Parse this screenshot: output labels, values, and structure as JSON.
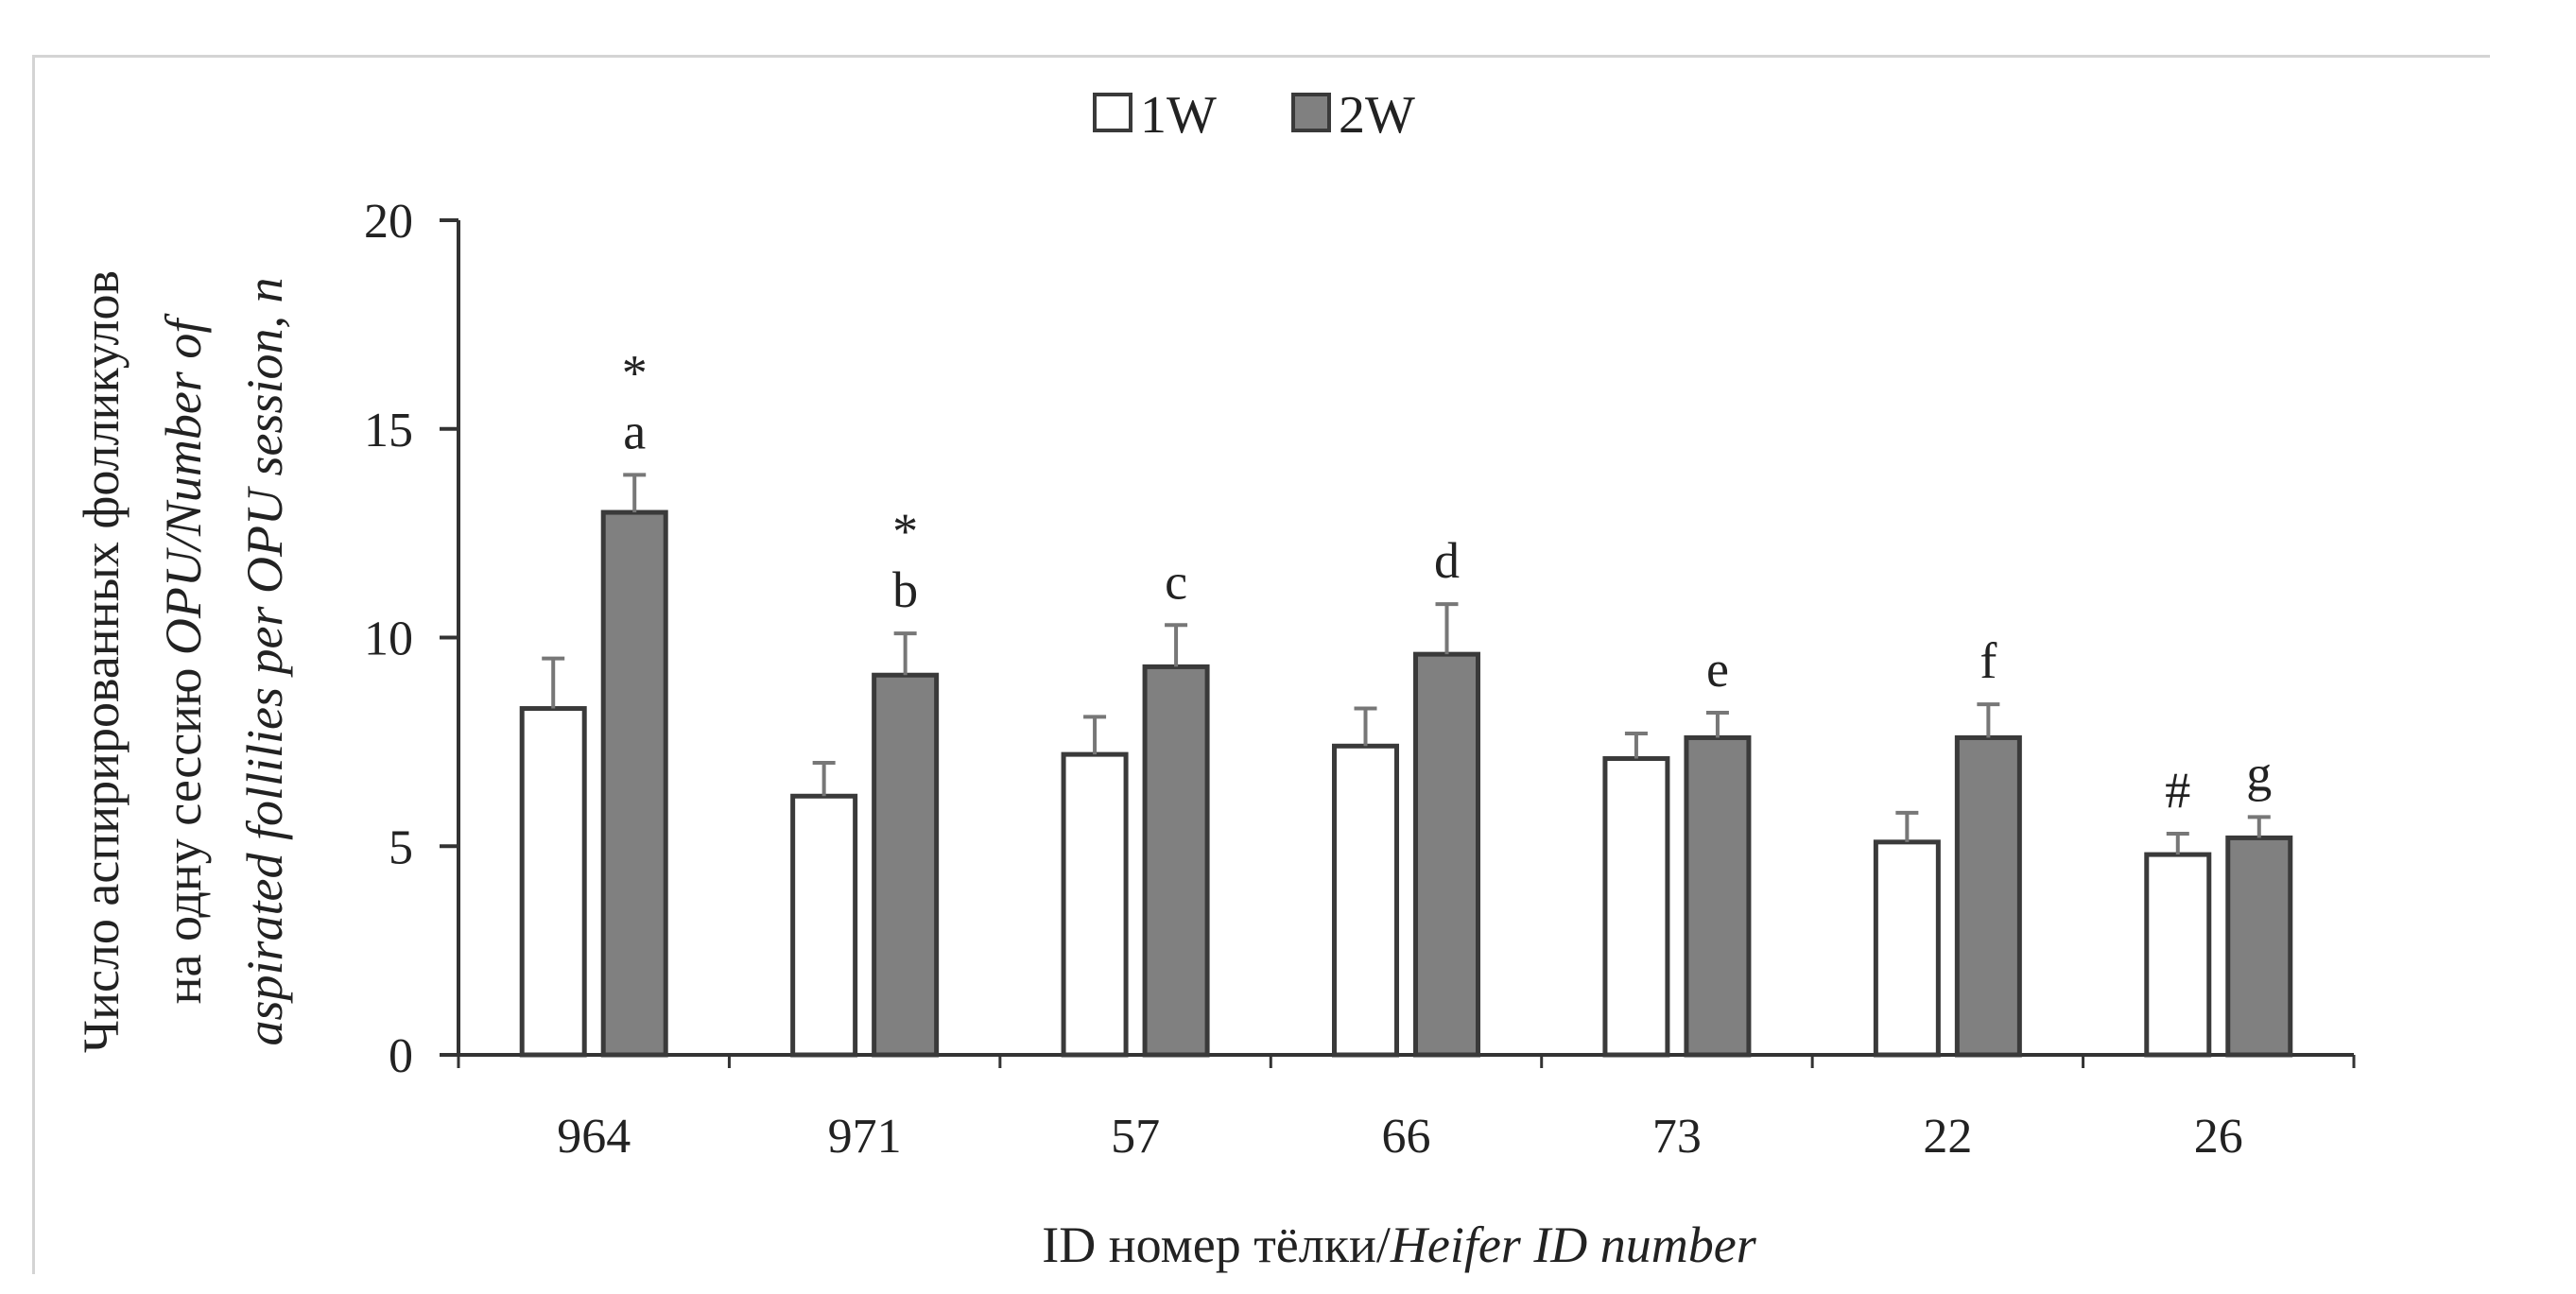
{
  "chart_data": {
    "type": "bar",
    "title": "",
    "xlabel_parts": [
      "ID номер тёлки/",
      "Heifer ID number"
    ],
    "ylabel_lines": [
      "Число аспирированных фолликулов",
      [
        "на одну сессию ",
        "OPU/Number of"
      ],
      "aspirated follilies per OPU session, n"
    ],
    "categories": [
      "964",
      "971",
      "57",
      "66",
      "73",
      "22",
      "26"
    ],
    "ylim": [
      0,
      20
    ],
    "yticks": [
      0,
      5,
      10,
      15,
      20
    ],
    "legend_position": "top-center",
    "series": [
      {
        "name": "1W",
        "color": "#ffffff",
        "values": [
          8.3,
          6.2,
          7.2,
          7.4,
          7.1,
          5.1,
          4.8
        ],
        "errors": [
          1.2,
          0.8,
          0.9,
          0.9,
          0.6,
          0.7,
          0.5
        ],
        "annotations": [
          "",
          "",
          "",
          "",
          "",
          "",
          "#"
        ]
      },
      {
        "name": "2W",
        "color": "#808080",
        "values": [
          13.0,
          9.1,
          9.3,
          9.6,
          7.6,
          7.6,
          5.2
        ],
        "errors": [
          0.9,
          1.0,
          1.0,
          1.2,
          0.6,
          0.8,
          0.5
        ],
        "annotations": [
          "a",
          "b",
          "c",
          "d",
          "e",
          "f",
          "g"
        ],
        "stars": [
          "*",
          "*",
          "",
          "",
          "",
          "",
          ""
        ]
      }
    ]
  }
}
